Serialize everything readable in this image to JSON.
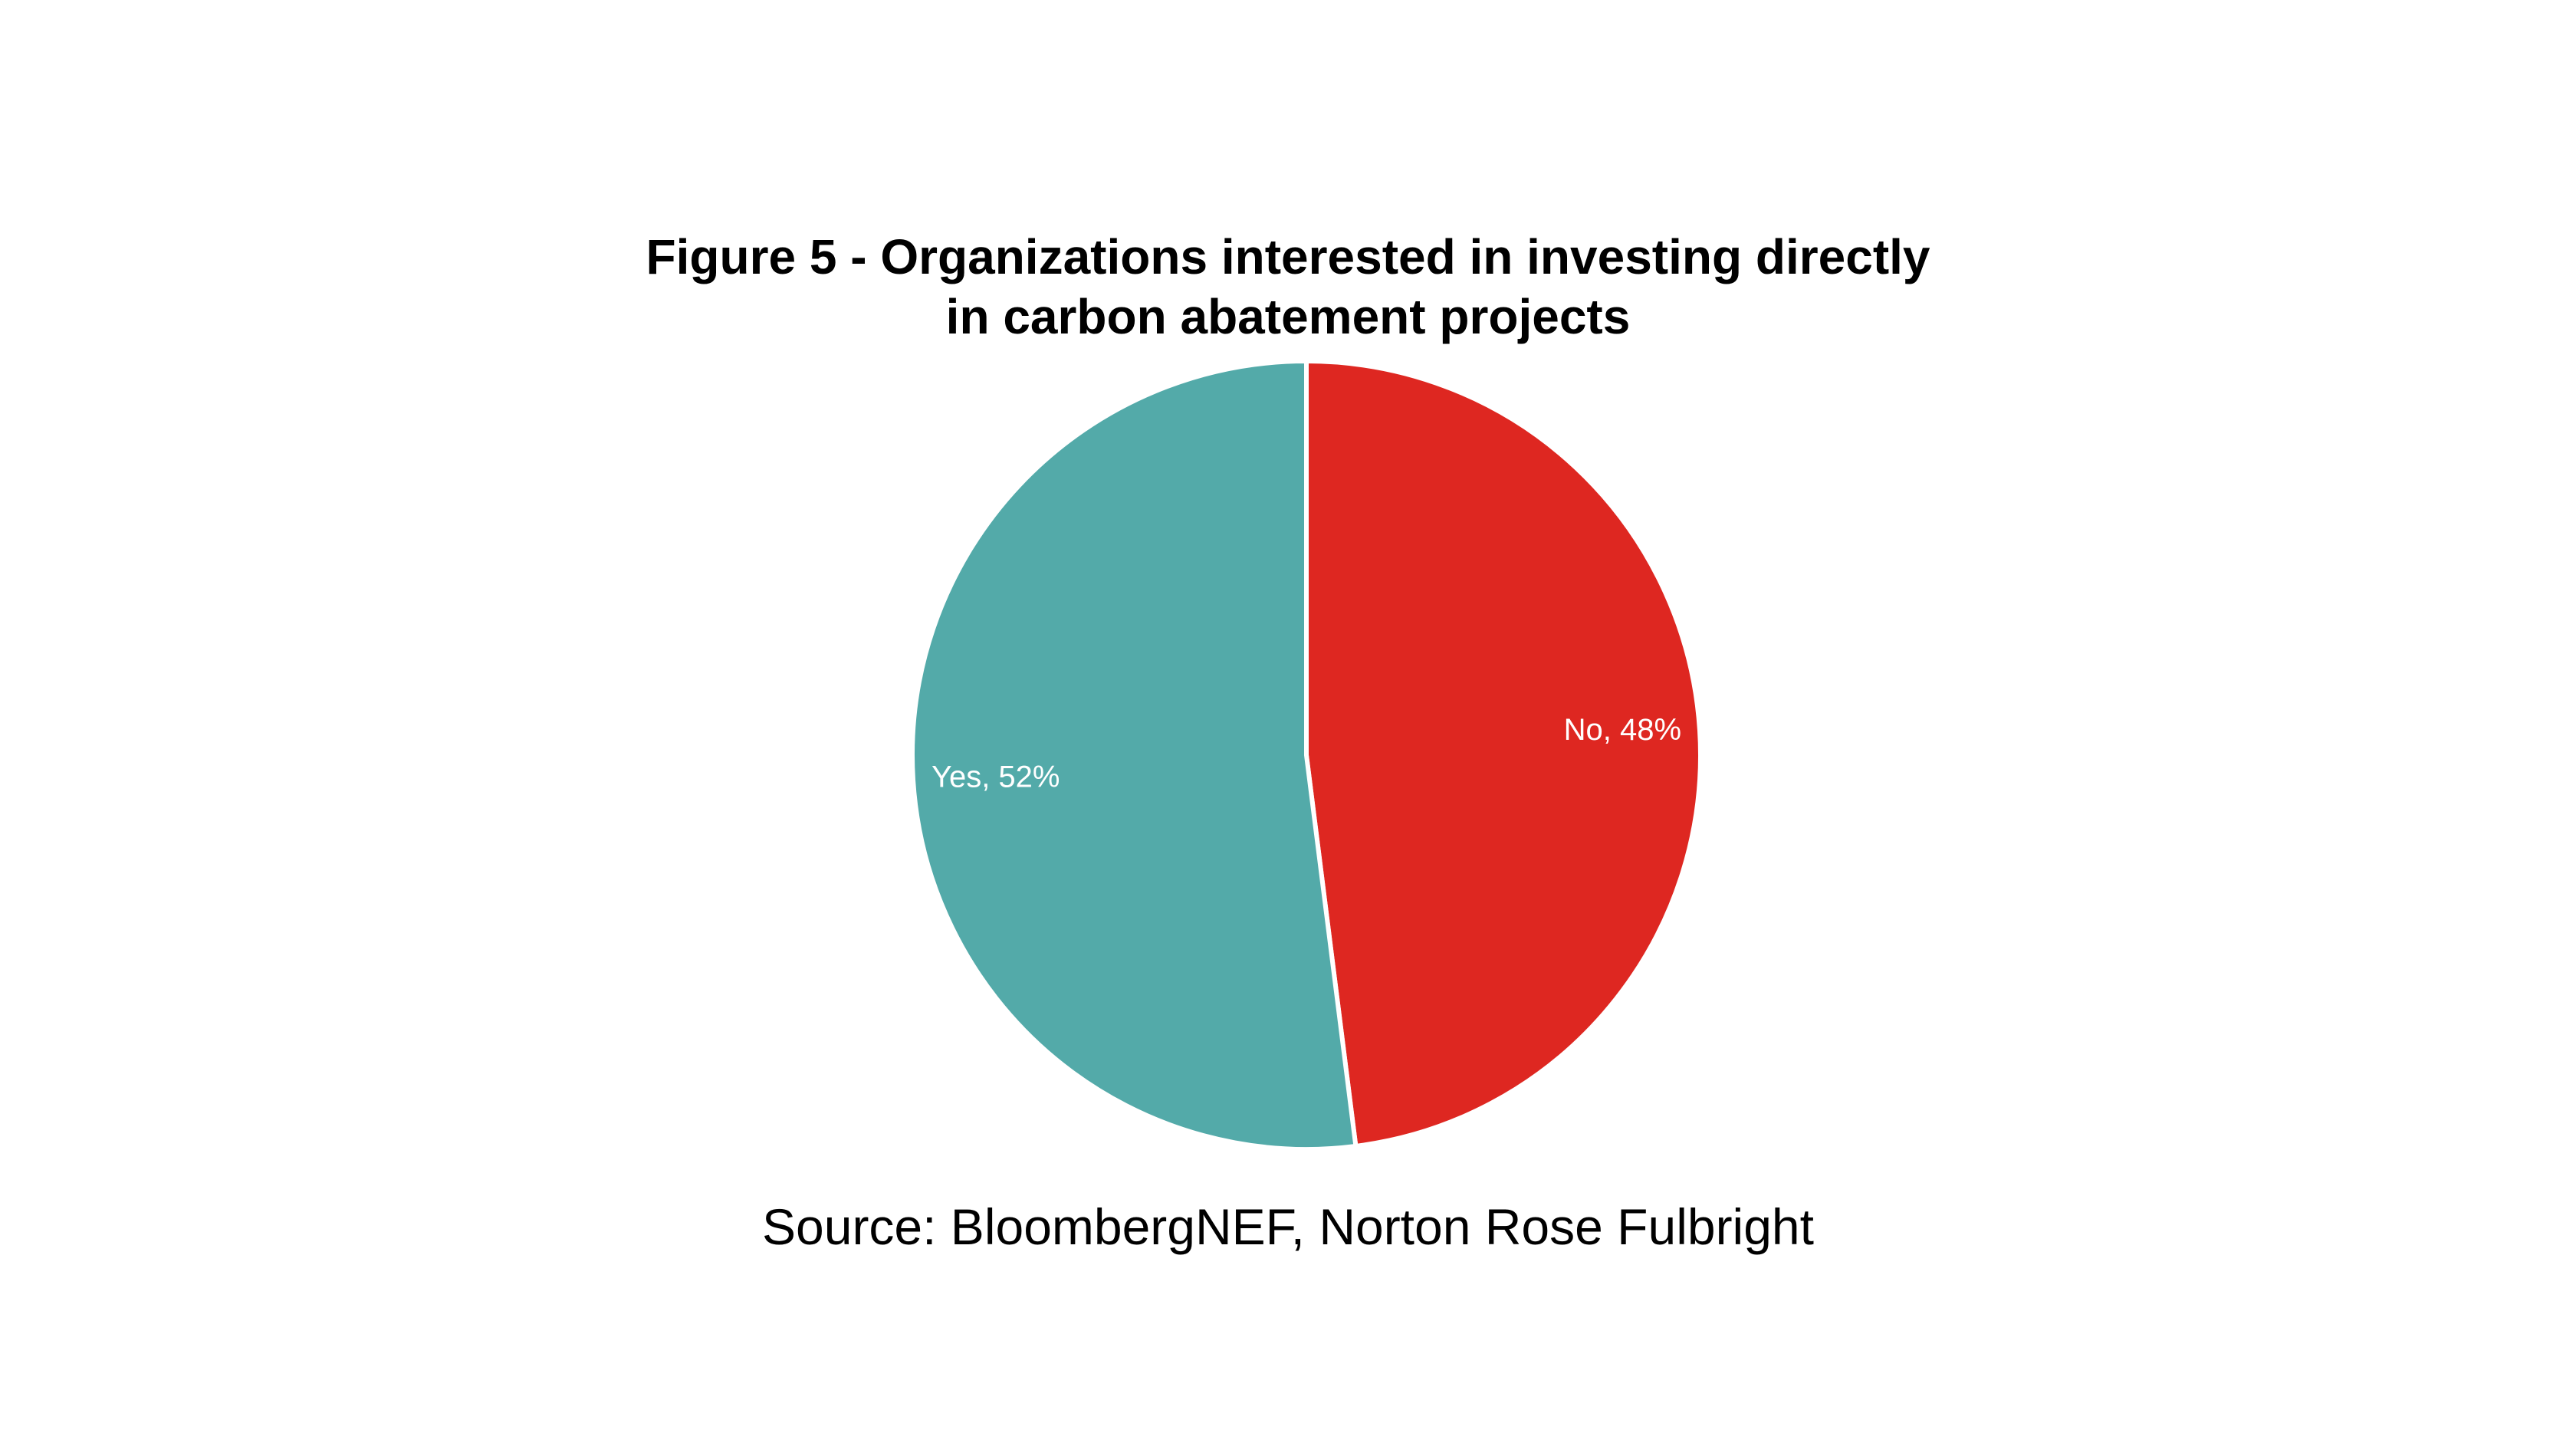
{
  "chart_data": {
    "type": "pie",
    "title": "Figure 5 - Organizations interested in investing directly in carbon abatement projects",
    "title_lines": [
      "Figure 5 - Organizations interested in investing directly",
      "in carbon abatement projects"
    ],
    "slices": [
      {
        "name": "No",
        "value": 48,
        "label": "No, 48%",
        "color": "#DE2721"
      },
      {
        "name": "Yes",
        "value": 52,
        "label": "Yes, 52%",
        "color": "#53AAA9"
      }
    ],
    "data_labels": "inside",
    "legend": "none",
    "source": "Source: BloombergNEF, Norton Rose Fulbright"
  }
}
